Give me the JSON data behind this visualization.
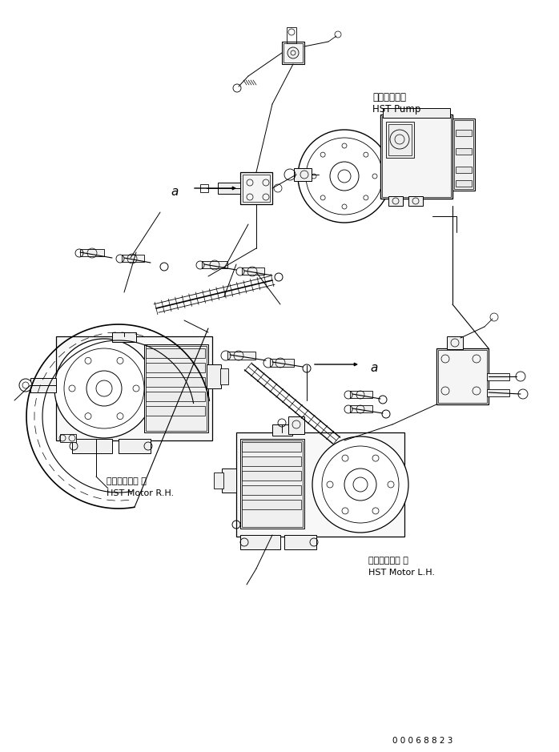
{
  "bg_color": "#ffffff",
  "line_color": "#000000",
  "fig_width": 6.98,
  "fig_height": 9.39,
  "dpi": 100,
  "labels": {
    "hst_pump_jp": "ＨＳＴポンプ",
    "hst_pump_en": "HST Pump",
    "hst_motor_rh_jp": "ＨＳＴモータ 右",
    "hst_motor_rh_en": "HST Motor R.H.",
    "hst_motor_lh_jp": "ＨＳＴモータ 左",
    "hst_motor_lh_en": "HST Motor L.H.",
    "part_number": "0 0 0 6 8 8 2 3",
    "label_a1": "a",
    "label_a2": "a"
  }
}
